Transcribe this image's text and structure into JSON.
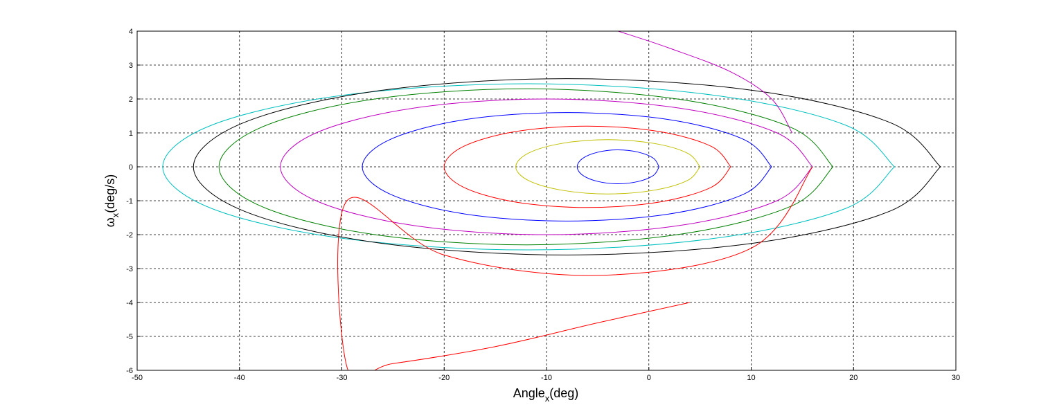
{
  "chart_data": {
    "type": "line",
    "xlabel": [
      "Angle",
      "x",
      "(deg)"
    ],
    "ylabel": [
      "ω",
      "x",
      "(deg/s)"
    ],
    "xlim": [
      -50,
      30
    ],
    "xticks": [
      -50,
      -40,
      -30,
      -20,
      -10,
      0,
      10,
      20,
      30
    ],
    "ylim": [
      -6,
      4
    ],
    "yticks": [
      -6,
      -5,
      -4,
      -3,
      -2,
      -1,
      0,
      1,
      2,
      3,
      4
    ],
    "grid": true,
    "series": [
      {
        "color": "#00bfbf",
        "x": [
          24,
          19.21,
          6.13,
          -11.75,
          -29.63,
          -42.71,
          -47.5,
          -42.71,
          -29.63,
          -11.75,
          6.13,
          19.21,
          24
        ],
        "y": [
          0,
          -1.23,
          -2.12,
          -2.45,
          -2.12,
          -1.23,
          0,
          1.23,
          2.12,
          2.45,
          2.12,
          1.23,
          0
        ]
      },
      {
        "color": "#000000",
        "x": [
          28.5,
          23.61,
          10.25,
          -8,
          -26.25,
          -39.61,
          -44.5,
          -39.61,
          -26.25,
          -8,
          10.25,
          23.61,
          28.5
        ],
        "y": [
          0,
          -1.3,
          -2.25,
          -2.6,
          -2.25,
          -1.3,
          0,
          1.3,
          2.25,
          2.6,
          2.25,
          1.3,
          0
        ]
      },
      {
        "color": "#008000",
        "x": [
          18,
          13.98,
          3,
          -12,
          -27,
          -37.98,
          -42,
          -37.98,
          -27,
          -12,
          3,
          13.98,
          18
        ],
        "y": [
          0,
          -1.15,
          -1.99,
          -2.3,
          -1.99,
          -1.15,
          0,
          1.15,
          1.99,
          2.3,
          1.99,
          1.15,
          0
        ]
      },
      {
        "color": "#bf00bf",
        "x": [
          16,
          12.52,
          3,
          -10,
          -23,
          -32.52,
          -36,
          -32.52,
          -23,
          -10,
          3,
          12.52,
          16
        ],
        "y": [
          0,
          -1,
          -1.73,
          -2,
          -1.73,
          -1,
          0,
          1,
          1.73,
          2,
          1.73,
          1,
          0
        ]
      },
      {
        "color": "#0000ff",
        "x": [
          12,
          9.32,
          2,
          -8,
          -18,
          -25.32,
          -28,
          -25.32,
          -18,
          -8,
          2,
          9.32,
          12
        ],
        "y": [
          0,
          -0.8,
          -1.39,
          -1.6,
          -1.39,
          -0.8,
          0,
          0.8,
          1.39,
          1.6,
          1.39,
          0.8,
          0
        ]
      },
      {
        "color": "#ff0000",
        "x": [
          8,
          6.12,
          1,
          -6,
          -13,
          -18.12,
          -20,
          -18.12,
          -13,
          -6,
          1,
          6.12,
          8
        ],
        "y": [
          0,
          -0.6,
          -1.04,
          -1.2,
          -1.04,
          -0.6,
          0,
          0.6,
          1.04,
          1.2,
          1.04,
          0.6,
          0
        ]
      },
      {
        "color": "#bfbf00",
        "x": [
          5,
          3.79,
          0.5,
          -4,
          -8.5,
          -11.79,
          -13,
          -11.79,
          -8.5,
          -4,
          0.5,
          3.79,
          5
        ],
        "y": [
          0,
          -0.4,
          -0.69,
          -0.8,
          -0.69,
          -0.4,
          0,
          0.4,
          0.69,
          0.8,
          0.69,
          0.4,
          0
        ]
      },
      {
        "color": "#0000ff",
        "x": [
          1,
          0.46,
          -1,
          -3,
          -5,
          -6.46,
          -7,
          -6.46,
          -5,
          -3,
          -1,
          0.46,
          1
        ],
        "y": [
          0,
          -0.25,
          -0.43,
          -0.5,
          -0.43,
          -0.25,
          0,
          0.25,
          0.43,
          0.5,
          0.43,
          0.25,
          0
        ]
      },
      {
        "color": "#ff0000",
        "x": [
          4,
          -5,
          -15,
          -25,
          -29.5,
          -29.5,
          -20,
          -5,
          10,
          16
        ],
        "y": [
          -4,
          -4.6,
          -5.3,
          -5.8,
          -5.9,
          -1,
          -2.6,
          -3.2,
          -2.4,
          0
        ]
      },
      {
        "color": "#bf00bf",
        "x": [
          -3,
          2,
          8,
          12,
          14
        ],
        "y": [
          4,
          3.5,
          2.8,
          2,
          1
        ]
      }
    ]
  }
}
